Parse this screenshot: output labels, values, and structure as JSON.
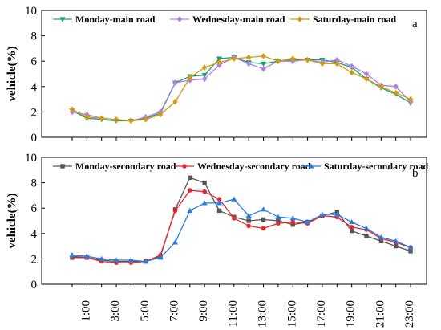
{
  "chart_data": [
    {
      "type": "line",
      "panel_label": "a",
      "ylabel": "vehicle(%)",
      "ylim": [
        0,
        10
      ],
      "yticks": [
        "0",
        "2",
        "4",
        "6",
        "8",
        "10"
      ],
      "x": [
        0,
        1,
        2,
        3,
        4,
        5,
        6,
        7,
        8,
        9,
        10,
        11,
        12,
        13,
        14,
        15,
        16,
        17,
        18,
        19,
        20,
        21,
        22,
        23
      ],
      "legend_position": "top",
      "series": [
        {
          "name": "Monday-main road",
          "color": "#1e9e6e",
          "marker": "triangle-down",
          "values": [
            2.1,
            1.5,
            1.4,
            1.3,
            1.3,
            1.5,
            1.9,
            4.3,
            4.8,
            4.9,
            6.2,
            6.3,
            5.9,
            5.8,
            6.0,
            6.1,
            6.1,
            6.1,
            5.9,
            5.5,
            4.6,
            3.9,
            3.4,
            2.7
          ]
        },
        {
          "name": "Wednesday-main road",
          "color": "#b07ee6",
          "marker": "diamond",
          "values": [
            2.0,
            1.8,
            1.5,
            1.4,
            1.3,
            1.6,
            2.0,
            4.3,
            4.5,
            4.6,
            5.7,
            6.3,
            5.8,
            5.4,
            6.0,
            6.0,
            6.1,
            5.9,
            6.1,
            5.6,
            5.0,
            4.1,
            4.0,
            2.8
          ]
        },
        {
          "name": "Saturday-main road",
          "color": "#d59a0c",
          "marker": "diamond",
          "values": [
            2.2,
            1.6,
            1.5,
            1.4,
            1.3,
            1.4,
            1.8,
            2.8,
            4.7,
            5.5,
            5.9,
            6.2,
            6.3,
            6.4,
            6.0,
            6.2,
            6.1,
            5.8,
            5.8,
            5.1,
            4.6,
            4.0,
            3.5,
            3.0
          ]
        }
      ]
    },
    {
      "type": "line",
      "panel_label": "b",
      "ylabel": "vehicle(%)",
      "ylim": [
        0,
        10
      ],
      "yticks": [
        "0",
        "2",
        "4",
        "6",
        "8",
        "10"
      ],
      "x": [
        0,
        1,
        2,
        3,
        4,
        5,
        6,
        7,
        8,
        9,
        10,
        11,
        12,
        13,
        14,
        15,
        16,
        17,
        18,
        19,
        20,
        21,
        22,
        23
      ],
      "xticklabels": {
        "1": "1:00",
        "3": "3:00",
        "5": "5:00",
        "7": "7:00",
        "9": "9:00",
        "11": "11:00",
        "13": "13:00",
        "15": "15:00",
        "17": "17:00",
        "19": "19:00",
        "21": "21:00",
        "23": "23:00"
      },
      "legend_position": "top",
      "series": [
        {
          "name": "Monday-secondary road",
          "color": "#555555",
          "marker": "square",
          "values": [
            2.1,
            2.1,
            1.9,
            1.8,
            1.8,
            1.8,
            2.2,
            5.9,
            8.4,
            8.0,
            5.8,
            5.3,
            5.0,
            5.1,
            5.0,
            4.7,
            4.9,
            5.4,
            5.7,
            4.2,
            3.8,
            3.4,
            3.0,
            2.6
          ]
        },
        {
          "name": "Wednesday-secondary road",
          "color": "#e8262a",
          "marker": "circle",
          "values": [
            2.2,
            2.1,
            1.8,
            1.7,
            1.7,
            1.8,
            2.3,
            5.8,
            7.4,
            7.3,
            6.7,
            5.2,
            4.6,
            4.4,
            4.8,
            4.9,
            4.8,
            5.4,
            5.3,
            4.5,
            4.3,
            3.6,
            3.3,
            2.9
          ]
        },
        {
          "name": "Saturday-secondary road",
          "color": "#2a7de1",
          "marker": "triangle-up",
          "values": [
            2.3,
            2.2,
            2.0,
            1.9,
            1.9,
            1.8,
            2.1,
            3.3,
            5.8,
            6.4,
            6.4,
            6.7,
            5.4,
            5.9,
            5.3,
            5.2,
            4.9,
            5.5,
            5.5,
            4.9,
            4.4,
            3.7,
            3.4,
            2.9
          ]
        }
      ]
    }
  ]
}
